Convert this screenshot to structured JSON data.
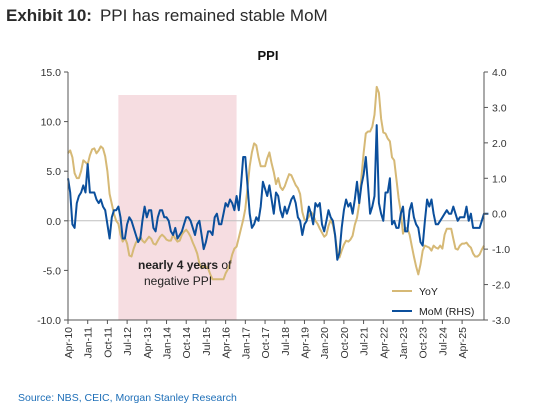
{
  "header": {
    "exhibit_label": "Exhibit 10:",
    "title": "PPI has remained stable MoM"
  },
  "footer": {
    "source": "Source: NBS, CEIC, Morgan Stanley Research"
  },
  "chart_data": {
    "type": "line",
    "title": "PPI",
    "x_start": "Apr-10",
    "x_ticks": [
      "Apr-10",
      "Jan-11",
      "Oct-11",
      "Jul-12",
      "Apr-13",
      "Jan-14",
      "Oct-14",
      "Jul-15",
      "Apr-16",
      "Jan-17",
      "Oct-17",
      "Jul-18",
      "Apr-19",
      "Jan-20",
      "Oct-20",
      "Jul-21",
      "Apr-22",
      "Jan-23",
      "Oct-23",
      "Jul-24",
      "Apr-25"
    ],
    "y_left": {
      "lim": [
        -10,
        15
      ],
      "ticks": [
        "-10.0",
        "-5.0",
        "0.0",
        "5.0",
        "10.0",
        "15.0"
      ]
    },
    "y_right": {
      "lim": [
        -3,
        4
      ],
      "ticks": [
        "-3.0",
        "-2.0",
        "-1.0",
        "0.0",
        "1.0",
        "2.0",
        "3.0",
        "4.0"
      ]
    },
    "shaded_period": {
      "from": "Mar-12",
      "to": "Sep-16",
      "color": "#f6dde1"
    },
    "annotation": {
      "bold": "nearly 4 years",
      "normal": " of",
      "line2": "negative PPI"
    },
    "colors": {
      "yoy": "#d6b976",
      "mom": "#0b4f9c",
      "shade": "#f6dde1",
      "source": "#1e6fb8"
    },
    "series": [
      {
        "name": "YoY",
        "axis": "left",
        "values": [
          6.8,
          7.1,
          6.4,
          4.8,
          4.3,
          4.3,
          5.0,
          6.1,
          5.9,
          5.7,
          6.6,
          7.2,
          7.3,
          6.8,
          7.1,
          7.5,
          7.3,
          6.5,
          5.0,
          2.7,
          1.7,
          0.7,
          0.0,
          -0.3,
          -1.4,
          -2.1,
          -1.7,
          -2.3,
          -3.5,
          -3.6,
          -2.8,
          -2.2,
          -1.9,
          -1.6,
          -2.0,
          -2.2,
          -1.9,
          -1.6,
          -1.8,
          -2.3,
          -2.4,
          -2.0,
          -1.6,
          -1.4,
          -1.6,
          -1.9,
          -2.0,
          -2.0,
          -1.4,
          -1.8,
          -2.1,
          -2.0,
          -1.4,
          -1.1,
          -0.9,
          -1.2,
          -1.6,
          -2.2,
          -2.7,
          -3.3,
          -4.3,
          -4.8,
          -4.6,
          -4.6,
          -4.8,
          -5.4,
          -5.9,
          -5.9,
          -5.9,
          -5.9,
          -5.9,
          -5.9,
          -5.3,
          -4.9,
          -4.3,
          -3.4,
          -2.8,
          -2.6,
          -1.7,
          -0.8,
          0.1,
          1.2,
          3.3,
          5.5,
          6.9,
          7.8,
          7.6,
          6.4,
          5.5,
          5.5,
          5.5,
          6.3,
          6.9,
          5.8,
          4.9,
          3.7,
          4.3,
          3.4,
          3.1,
          3.5,
          4.1,
          4.7,
          4.6,
          4.1,
          3.6,
          3.3,
          2.7,
          0.9,
          0.1,
          0.1,
          0.4,
          0.9,
          0.6,
          0.0,
          -0.3,
          -0.8,
          -1.2,
          -1.6,
          -1.4,
          -0.5,
          0.1,
          -0.4,
          -1.5,
          -3.1,
          -3.7,
          -3.0,
          -2.4,
          -2.0,
          -2.1,
          -1.9,
          -1.5,
          -0.4,
          0.3,
          1.7,
          4.4,
          6.8,
          8.8,
          9.0,
          9.0,
          9.5,
          10.7,
          13.5,
          12.9,
          10.3,
          8.9,
          8.8,
          8.3,
          8.0,
          6.4,
          6.1,
          4.2,
          2.3,
          0.9,
          -1.3,
          -0.7,
          -0.8,
          -1.4,
          -2.5,
          -3.6,
          -4.6,
          -5.4,
          -4.4,
          -3.0,
          -2.5,
          -2.6,
          -2.7,
          -3.0,
          -2.5,
          -2.7,
          -2.8,
          -2.5,
          -2.8,
          -1.4,
          -0.8,
          -0.8,
          -0.8,
          -1.8,
          -2.8,
          -2.9,
          -2.5,
          -2.3,
          -2.3,
          -2.2,
          -2.5,
          -2.7,
          -3.3,
          -3.6,
          -3.6,
          -3.4,
          -2.9,
          -2.5
        ]
      },
      {
        "name": "MoM (RHS)",
        "axis": "right",
        "values": [
          1.0,
          0.6,
          -0.3,
          -0.4,
          0.3,
          0.5,
          0.6,
          0.8,
          0.6,
          1.4,
          0.6,
          0.6,
          0.6,
          0.4,
          0.3,
          0.4,
          0.2,
          0.1,
          -0.3,
          -0.7,
          -0.1,
          0.1,
          0.1,
          0.2,
          -0.1,
          -0.7,
          -0.7,
          -0.3,
          -0.1,
          -0.2,
          -0.4,
          -0.6,
          -0.8,
          -0.7,
          -0.2,
          0.2,
          -0.1,
          0.1,
          0.1,
          -0.4,
          -0.5,
          -0.1,
          0.1,
          0.1,
          -0.1,
          -0.1,
          -0.2,
          -0.5,
          -0.6,
          -0.4,
          -0.7,
          -0.6,
          -0.5,
          -0.3,
          -0.1,
          -0.1,
          -0.2,
          -0.4,
          -0.6,
          -0.3,
          -0.2,
          -0.6,
          -1.0,
          -0.8,
          -0.5,
          -0.5,
          -0.6,
          -0.1,
          0.0,
          -0.3,
          -0.3,
          0.0,
          0.3,
          0.2,
          0.4,
          0.3,
          0.1,
          0.5,
          0.1,
          0.8,
          1.6,
          1.6,
          0.8,
          0.0,
          -0.4,
          -0.3,
          -0.1,
          -0.2,
          0.2,
          0.9,
          0.7,
          0.5,
          0.8,
          0.4,
          0.0,
          0.6,
          0.5,
          0.1,
          -0.1,
          0.2,
          0.0,
          0.2,
          0.4,
          0.5,
          0.3,
          -0.1,
          -0.2,
          -0.6,
          -0.3,
          -0.2,
          0.2,
          0.0,
          -0.3,
          0.3,
          0.2,
          0.3,
          -0.3,
          -0.5,
          -0.2,
          0.1,
          -0.1,
          -0.2,
          -0.6,
          -1.3,
          -1.1,
          -0.4,
          0.1,
          0.4,
          0.2,
          0.3,
          0.0,
          0.4,
          0.9,
          0.3,
          0.8,
          1.1,
          1.6,
          0.8,
          0.0,
          0.2,
          0.5,
          2.5,
          0.3,
          0.0,
          -0.2,
          0.6,
          0.6,
          1.0,
          -0.3,
          -0.2,
          -0.4,
          -0.4,
          0.0,
          0.2,
          -0.5,
          -0.5,
          0.1,
          0.3,
          -0.1,
          -0.3,
          -0.4,
          -0.8,
          -0.9,
          -0.2,
          0.4,
          0.2,
          0.4,
          0.0,
          -0.3,
          -0.3,
          -0.2,
          -0.1,
          0.0,
          0.1,
          0.0,
          0.0,
          0.2,
          0.0,
          -0.2,
          -0.1,
          -0.1,
          -0.1,
          0.2,
          -0.2,
          0.0,
          -0.4,
          -0.4,
          -0.4,
          -0.4,
          -0.2,
          0.0,
          0.0,
          0.0
        ]
      }
    ],
    "legend": {
      "position": "bottom-right",
      "entries": [
        "YoY",
        "MoM (RHS)"
      ]
    }
  }
}
